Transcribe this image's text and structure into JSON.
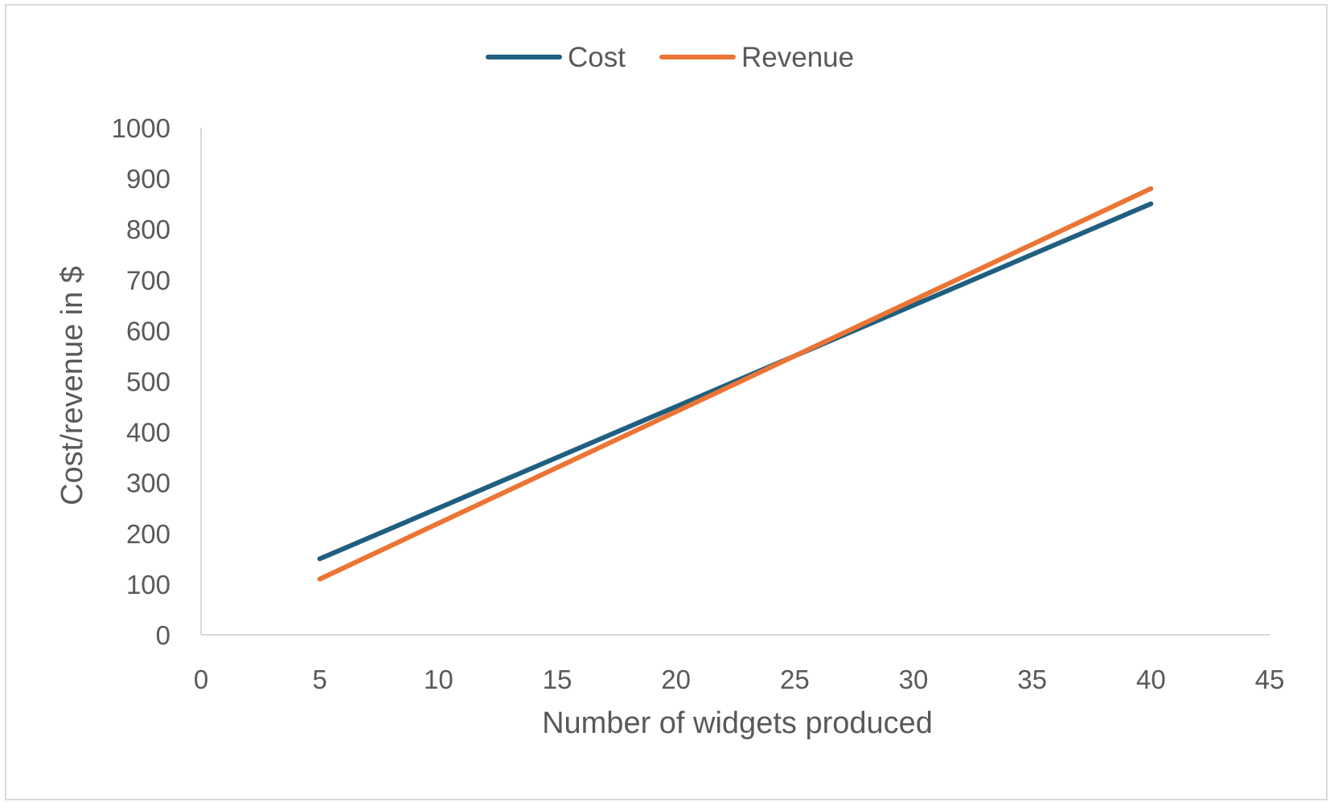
{
  "chart_data": {
    "type": "line",
    "title": "",
    "xlabel": "Number of widgets produced",
    "ylabel": "Cost/revenue in $",
    "xlim": [
      0,
      45
    ],
    "ylim": [
      0,
      1000
    ],
    "x_ticks": [
      "0",
      "5",
      "10",
      "15",
      "20",
      "25",
      "30",
      "35",
      "40",
      "45"
    ],
    "y_ticks": [
      "0",
      "100",
      "200",
      "300",
      "400",
      "500",
      "600",
      "700",
      "800",
      "900",
      "1000"
    ],
    "grid": false,
    "legend_position": "top-center",
    "series": [
      {
        "name": "Cost",
        "color": "#1f5f80",
        "x": [
          5,
          40
        ],
        "y": [
          150,
          850
        ]
      },
      {
        "name": "Revenue",
        "color": "#ec7434",
        "x": [
          5,
          40
        ],
        "y": [
          110,
          880
        ]
      }
    ]
  }
}
